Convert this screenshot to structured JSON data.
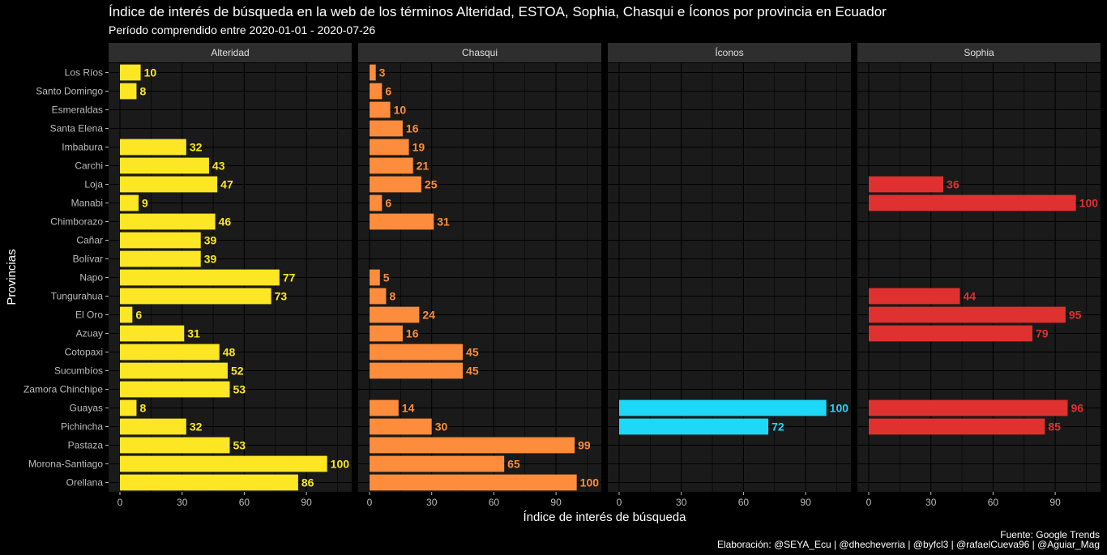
{
  "chart_data": {
    "type": "bar",
    "orientation": "horizontal",
    "title": "Índice de interés de búsqueda en la web de los términos Alteridad, ESTOA, Sophia, Chasqui e Íconos por provincia en Ecuador",
    "subtitle": "Período comprendido entre 2020-01-01 - 2020-07-26",
    "xlabel": "Índice de interés de búsqueda",
    "ylabel": "Provincias",
    "xlim": [
      0,
      110
    ],
    "xticks": [
      0,
      30,
      60,
      90
    ],
    "grid": true,
    "legend": "none",
    "caption_source": "Fuente: Google Trends",
    "caption_credits": "Elaboración:  @SEYA_Ecu | @dhecheverria | @byfcl3 | @rafaelCueva96 | @Aguiar_Mag",
    "categories": [
      "Los Ríos",
      "Santo Domingo",
      "Esmeraldas",
      "Santa Elena",
      "Imbabura",
      "Carchi",
      "Loja",
      "Manabi",
      "Chimborazo",
      "Cañar",
      "Bolívar",
      "Napo",
      "Tungurahua",
      "El Oro",
      "Azuay",
      "Cotopaxi",
      "Sucumbíos",
      "Zamora Chinchipe",
      "Guayas",
      "Pichincha",
      "Pastaza",
      "Morona-Santiago",
      "Orellana"
    ],
    "series": [
      {
        "name": "Alteridad",
        "color": "#fde725",
        "values": [
          10,
          8,
          null,
          null,
          32,
          43,
          47,
          9,
          46,
          39,
          39,
          77,
          73,
          6,
          31,
          48,
          52,
          53,
          8,
          32,
          53,
          100,
          86
        ]
      },
      {
        "name": "Chasqui",
        "color": "#fd8d3c",
        "values": [
          3,
          6,
          10,
          16,
          19,
          21,
          25,
          6,
          31,
          null,
          null,
          5,
          8,
          24,
          16,
          45,
          45,
          null,
          14,
          30,
          99,
          65,
          100
        ]
      },
      {
        "name": "Íconos",
        "color": "#1ed8f7",
        "values": [
          null,
          null,
          null,
          null,
          null,
          null,
          null,
          null,
          null,
          null,
          null,
          null,
          null,
          null,
          null,
          null,
          null,
          null,
          100,
          72,
          null,
          null,
          null
        ]
      },
      {
        "name": "Sophia",
        "color": "#e03131",
        "values": [
          null,
          null,
          null,
          null,
          null,
          null,
          36,
          100,
          null,
          null,
          null,
          null,
          44,
          95,
          79,
          null,
          null,
          null,
          96,
          85,
          null,
          null,
          null
        ]
      }
    ]
  }
}
